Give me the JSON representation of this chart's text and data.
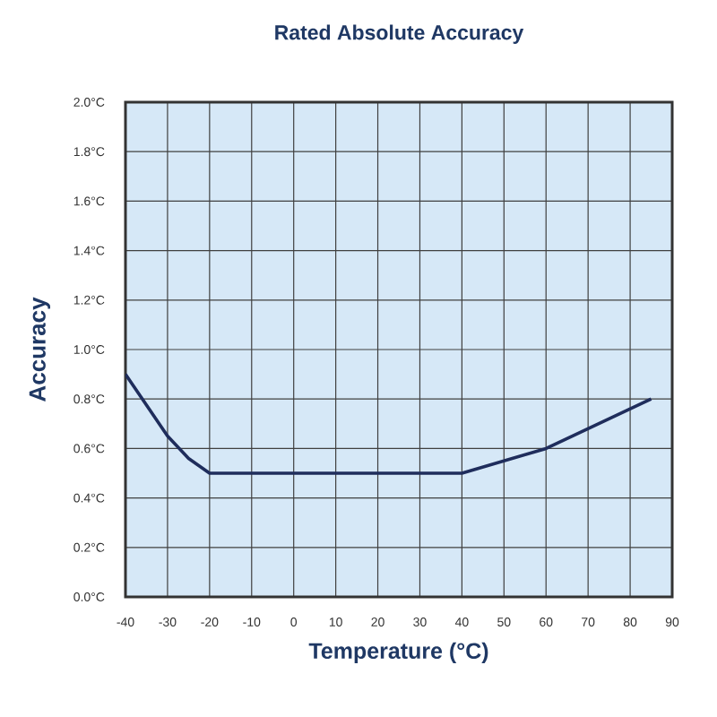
{
  "chart_data": {
    "type": "line",
    "title": "Rated Absolute Accuracy",
    "xlabel": "Temperature (°C)",
    "ylabel": "Accuracy",
    "x": [
      -40,
      -30,
      -25,
      -20,
      40,
      60,
      85
    ],
    "series": [
      {
        "color": "#1f2d5c",
        "values": [
          0.9,
          0.65,
          0.56,
          0.5,
          0.5,
          0.6,
          0.8
        ]
      }
    ],
    "xlim": [
      -40,
      90
    ],
    "xticks": [
      -40,
      -30,
      -20,
      -10,
      0,
      10,
      20,
      30,
      40,
      50,
      60,
      70,
      80,
      90
    ],
    "ylim": [
      0,
      2.0
    ],
    "yticks": [
      {
        "value": 0,
        "label": "0.0°C"
      },
      {
        "value": 0.2,
        "label": "0.2°C"
      },
      {
        "value": 0.4,
        "label": "0.4°C"
      },
      {
        "value": 0.6,
        "label": "0.6°C"
      },
      {
        "value": 0.8,
        "label": "0.8°C"
      },
      {
        "value": 1.0,
        "label": "1.0°C"
      },
      {
        "value": 1.2,
        "label": "1.2°C"
      },
      {
        "value": 1.4,
        "label": "1.4°C"
      },
      {
        "value": 1.6,
        "label": "1.6°C"
      },
      {
        "value": 1.8,
        "label": "1.8°C"
      },
      {
        "value": 2.0,
        "label": "2.0°C"
      }
    ],
    "grid": true,
    "marker": "none",
    "line_style": "solid"
  }
}
